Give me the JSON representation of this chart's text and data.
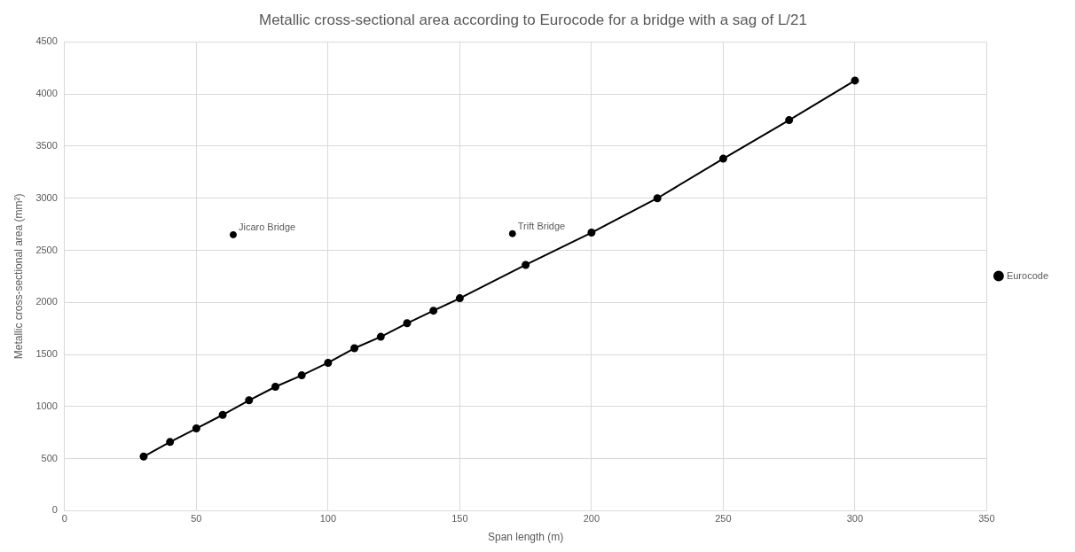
{
  "chart_data": {
    "type": "line",
    "title": "Metallic cross-sectional area according to Eurocode for a bridge with a sag of L/21",
    "xlabel": "Span length (m)",
    "ylabel": "Metallic cross-sectional area (mm²)",
    "xlim": [
      0,
      350
    ],
    "xticks": [
      0,
      50,
      100,
      150,
      200,
      250,
      300,
      350
    ],
    "ylim": [
      0,
      4500
    ],
    "yticks": [
      0,
      500,
      1000,
      1500,
      2000,
      2500,
      3000,
      3500,
      4000,
      4500
    ],
    "grid": true,
    "legend": "right",
    "marker": "circle",
    "line_style": "solid",
    "series": [
      {
        "name": "Eurocode",
        "color": "#000000",
        "x": [
          30,
          40,
          50,
          60,
          70,
          80,
          90,
          100,
          110,
          120,
          130,
          140,
          150,
          175,
          200,
          225,
          250,
          275,
          300
        ],
        "values": [
          520,
          660,
          790,
          920,
          1060,
          1190,
          1300,
          1420,
          1560,
          1670,
          1800,
          1920,
          2040,
          2360,
          2670,
          3000,
          3380,
          3750,
          4130
        ]
      },
      {
        "type": "scatter",
        "name": "Jicaro Bridge",
        "color": "#000000",
        "x": [
          64
        ],
        "values": [
          2650
        ]
      },
      {
        "type": "scatter",
        "name": "Trift Bridge",
        "color": "#000000",
        "x": [
          170
        ],
        "values": [
          2660
        ]
      }
    ]
  }
}
